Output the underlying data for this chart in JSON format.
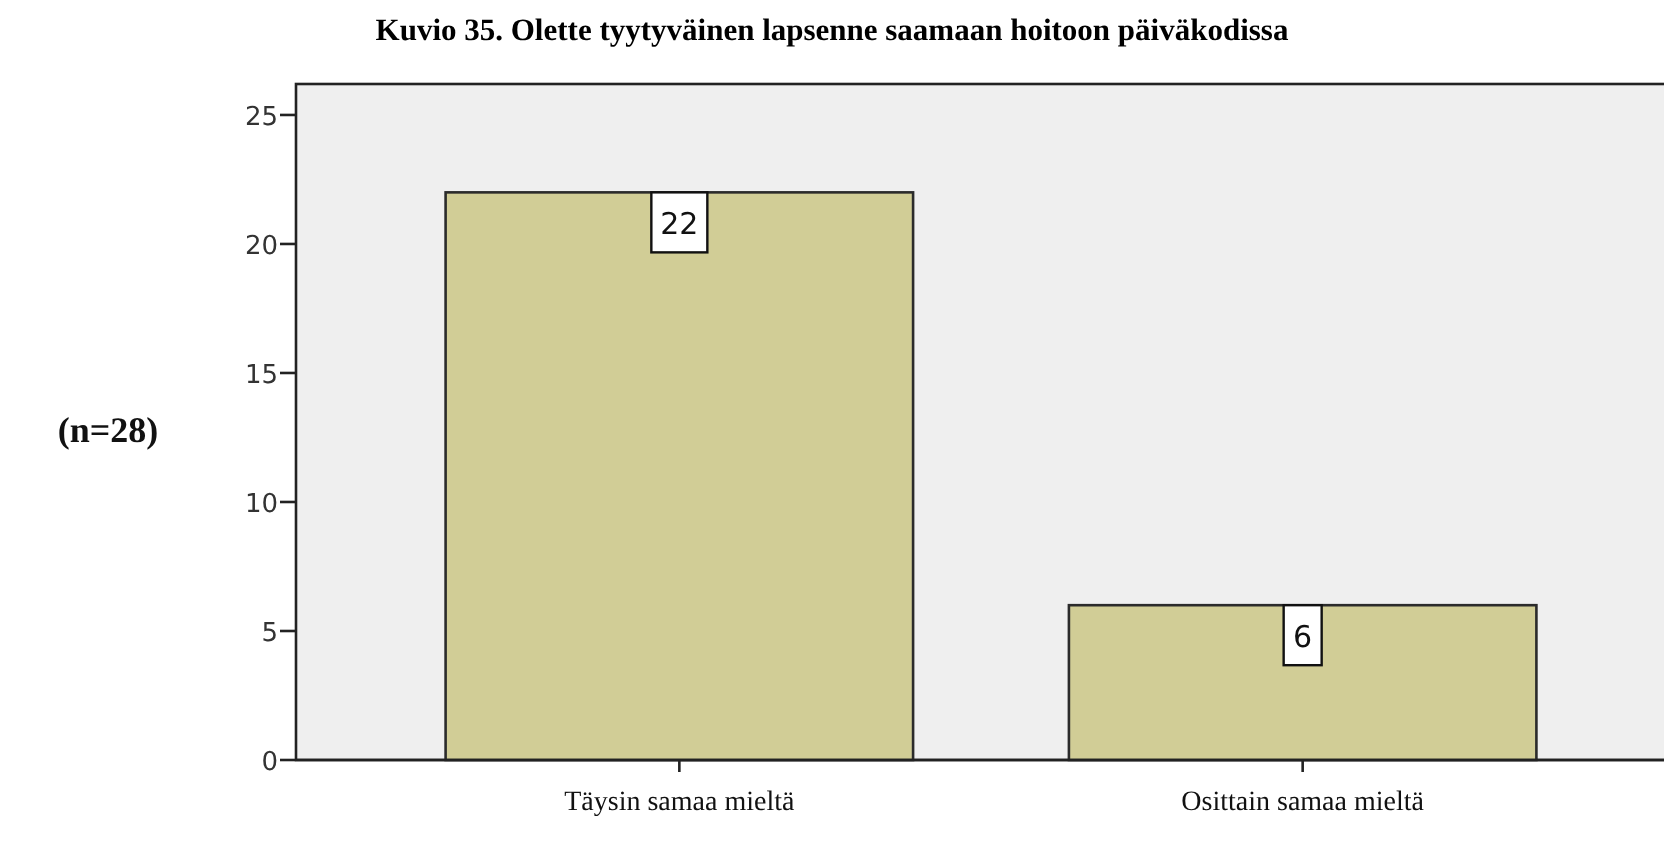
{
  "chart_data": {
    "type": "bar",
    "title": "Kuvio 35. Olette tyytyväinen lapsenne saamaan hoitoon päiväkodissa",
    "ylabel": "(n=28)",
    "categories": [
      "Täysin samaa mieltä",
      "Osittain samaa mieltä"
    ],
    "values": [
      22,
      6
    ],
    "color": "#d1cd96",
    "ylim": [
      0,
      26.2
    ],
    "yticks": [
      0,
      5,
      10,
      15,
      20,
      25
    ],
    "data_labels": true
  }
}
